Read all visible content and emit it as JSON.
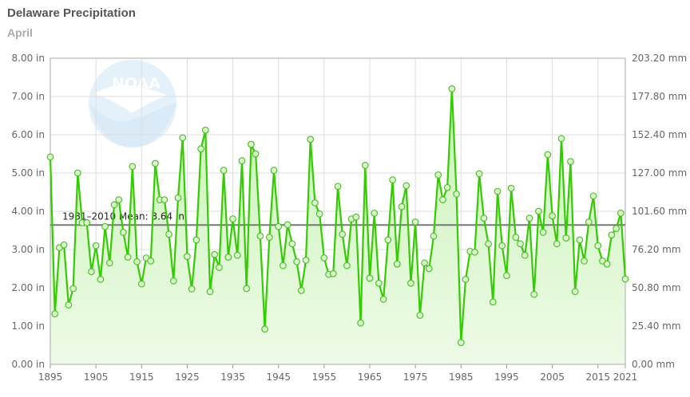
{
  "title": "Delaware Precipitation",
  "subtitle": "April",
  "colors": {
    "line": "#33cc00",
    "area_top": "#c8f2b6",
    "area_bottom": "#eefbe7",
    "marker_fill": "#d9f7c8",
    "marker_stroke": "#44bb22",
    "mean_line": "#777777",
    "grid": "#dddddd"
  },
  "logo_icon": "noaa-logo-icon",
  "logo_text": "NOAA",
  "chart_data": {
    "type": "line",
    "title": "Delaware Precipitation",
    "subtitle": "April",
    "y_left_ticks": [
      "0.00 in",
      "1.00 in",
      "2.00 in",
      "3.00 in",
      "4.00 in",
      "5.00 in",
      "6.00 in",
      "7.00 in",
      "8.00 in"
    ],
    "y_right_ticks": [
      "0.00 mm",
      "25.40 mm",
      "50.80 mm",
      "76.20 mm",
      "101.60 mm",
      "127.00 mm",
      "152.40 mm",
      "177.80 mm",
      "203.20 mm"
    ],
    "x_ticks": [
      "1895",
      "1905",
      "1915",
      "1925",
      "1935",
      "1945",
      "1955",
      "1965",
      "1975",
      "1985",
      "1995",
      "2005",
      "2015",
      "2021"
    ],
    "x_range": [
      1895,
      2021
    ],
    "ylim": [
      0,
      8
    ],
    "grid": true,
    "mean": {
      "label": "1981–2010 Mean: 3.64 in",
      "value": 3.64
    },
    "series": [
      {
        "x": [
          1895,
          1896,
          1897,
          1898,
          1899,
          1900,
          1901,
          1902,
          1903,
          1904,
          1905,
          1906,
          1907,
          1908,
          1909,
          1910,
          1911,
          1912,
          1913,
          1914,
          1915,
          1916,
          1917,
          1918,
          1919,
          1920,
          1921,
          1922,
          1923,
          1924,
          1925,
          1926,
          1927,
          1928,
          1929,
          1930,
          1931,
          1932,
          1933,
          1934,
          1935,
          1936,
          1937,
          1938,
          1939,
          1940,
          1941,
          1942,
          1943,
          1944,
          1945,
          1946,
          1947,
          1948,
          1949,
          1950,
          1951,
          1952,
          1953,
          1954,
          1955,
          1956,
          1957,
          1958,
          1959,
          1960,
          1961,
          1962,
          1963,
          1964,
          1965,
          1966,
          1967,
          1968,
          1969,
          1970,
          1971,
          1972,
          1973,
          1974,
          1975,
          1976,
          1977,
          1978,
          1979,
          1980,
          1981,
          1982,
          1983,
          1984,
          1985,
          1986,
          1987,
          1988,
          1989,
          1990,
          1991,
          1992,
          1993,
          1994,
          1995,
          1996,
          1997,
          1998,
          1999,
          2000,
          2001,
          2002,
          2003,
          2004,
          2005,
          2006,
          2007,
          2008,
          2009,
          2010,
          2011,
          2012,
          2013,
          2014,
          2015,
          2016,
          2017,
          2018,
          2019,
          2020,
          2021
        ],
        "values": [
          5.42,
          1.32,
          3.05,
          3.12,
          1.55,
          1.98,
          5.0,
          3.7,
          3.7,
          2.42,
          3.1,
          2.22,
          3.6,
          2.65,
          4.17,
          4.3,
          3.45,
          2.8,
          5.17,
          2.68,
          2.1,
          2.78,
          2.7,
          5.25,
          4.3,
          4.3,
          3.4,
          2.18,
          4.35,
          5.92,
          2.82,
          1.97,
          3.25,
          5.63,
          6.12,
          1.9,
          2.87,
          2.53,
          5.07,
          2.8,
          3.8,
          2.85,
          5.32,
          1.98,
          5.75,
          5.5,
          3.35,
          0.92,
          3.32,
          5.07,
          3.6,
          2.58,
          3.65,
          3.15,
          2.68,
          1.93,
          2.72,
          5.88,
          4.22,
          3.93,
          2.78,
          2.35,
          2.37,
          4.65,
          3.4,
          2.58,
          3.8,
          3.85,
          1.08,
          5.2,
          2.25,
          3.95,
          2.12,
          1.7,
          3.25,
          4.82,
          2.62,
          4.12,
          4.67,
          2.12,
          3.72,
          1.28,
          2.65,
          2.5,
          3.35,
          4.95,
          4.3,
          4.62,
          7.2,
          4.45,
          0.57,
          2.22,
          2.95,
          2.93,
          4.98,
          3.82,
          3.15,
          1.63,
          4.52,
          3.1,
          2.32,
          4.6,
          3.32,
          3.15,
          2.85,
          3.82,
          1.83,
          4.0,
          3.45,
          5.48,
          3.88,
          3.15,
          5.9,
          3.3,
          5.3,
          1.9,
          3.25,
          2.7,
          3.72,
          4.4,
          3.1,
          2.7,
          2.62,
          3.38,
          3.55,
          3.95,
          2.23
        ]
      }
    ]
  }
}
